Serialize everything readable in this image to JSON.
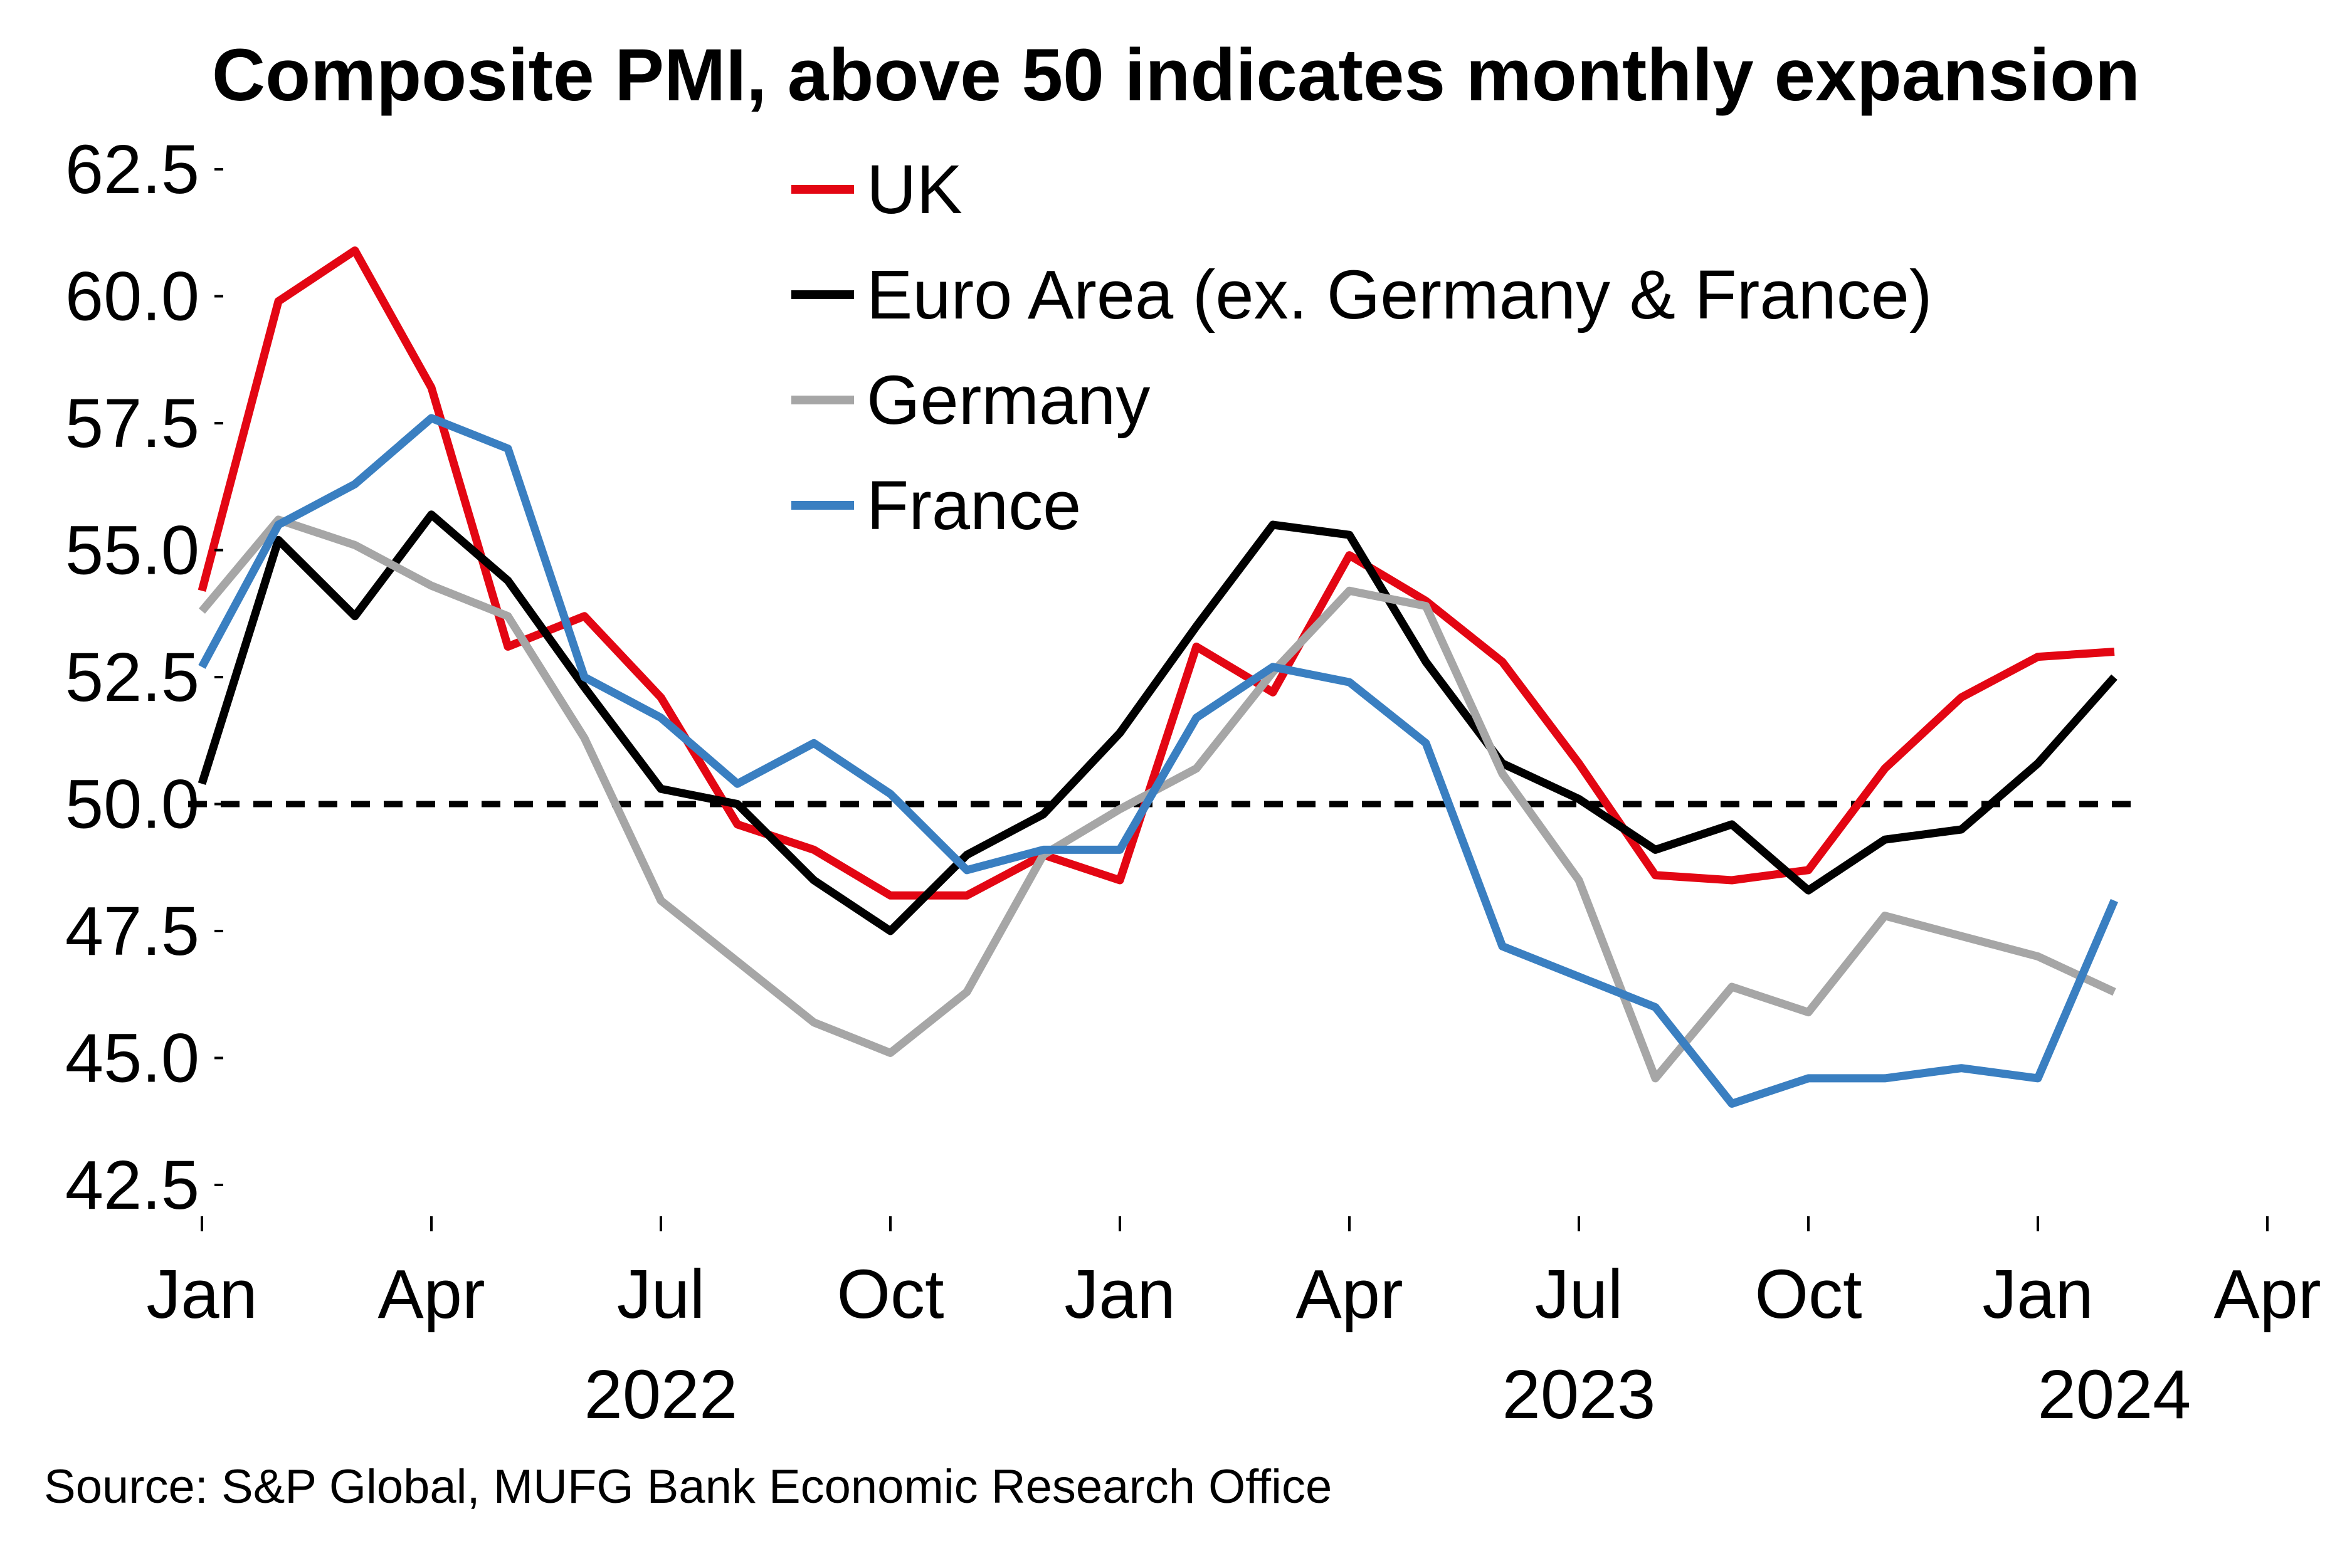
{
  "chart_data": {
    "type": "line",
    "title": "Composite PMI, above 50 indicates monthly expansion",
    "source": "Source: S&P Global, MUFG Bank Economic Research Office",
    "x": [
      "2022-01",
      "2022-02",
      "2022-03",
      "2022-04",
      "2022-05",
      "2022-06",
      "2022-07",
      "2022-08",
      "2022-09",
      "2022-10",
      "2022-11",
      "2022-12",
      "2023-01",
      "2023-02",
      "2023-03",
      "2023-04",
      "2023-05",
      "2023-06",
      "2023-07",
      "2023-08",
      "2023-09",
      "2023-10",
      "2023-11",
      "2023-12",
      "2024-01",
      "2024-02"
    ],
    "x_ticks": [
      {
        "date": "2022-01",
        "label": "Jan"
      },
      {
        "date": "2022-04",
        "label": "Apr"
      },
      {
        "date": "2022-07",
        "label": "Jul"
      },
      {
        "date": "2022-10",
        "label": "Oct"
      },
      {
        "date": "2023-01",
        "label": "Jan"
      },
      {
        "date": "2023-04",
        "label": "Apr"
      },
      {
        "date": "2023-07",
        "label": "Jul"
      },
      {
        "date": "2023-10",
        "label": "Oct"
      },
      {
        "date": "2024-01",
        "label": "Jan"
      },
      {
        "date": "2024-04",
        "label": "Apr"
      }
    ],
    "year_labels": [
      {
        "date": "2022-07",
        "label": "2022"
      },
      {
        "date": "2023-07",
        "label": "2023"
      },
      {
        "date": "2024-02",
        "label": "2024"
      }
    ],
    "xlim": [
      "2022-01",
      "2024-04"
    ],
    "ylim": [
      42.5,
      62.5
    ],
    "y_ticks": [
      "62.5",
      "60.0",
      "57.5",
      "55.0",
      "52.5",
      "50.0",
      "47.5",
      "45.0",
      "42.5"
    ],
    "reference_line": {
      "y": 50,
      "style": "dashed",
      "color": "#000000"
    },
    "grid": false,
    "legend_position": "top-center",
    "series": [
      {
        "name": "UK",
        "color": "#e30613",
        "values": [
          54.2,
          59.9,
          60.9,
          58.2,
          53.1,
          53.7,
          52.1,
          49.6,
          49.1,
          48.2,
          48.2,
          49.0,
          48.5,
          53.1,
          52.2,
          54.9,
          54.0,
          52.8,
          50.8,
          48.6,
          48.5,
          48.7,
          50.7,
          52.1,
          52.9,
          53.0
        ]
      },
      {
        "name": "Euro Area (ex. Germany & France)",
        "color": "#000000",
        "values": [
          50.4,
          55.2,
          53.7,
          55.7,
          54.4,
          52.3,
          50.3,
          50.0,
          48.5,
          47.5,
          49.0,
          49.8,
          51.4,
          53.5,
          55.5,
          55.3,
          52.8,
          50.8,
          50.1,
          49.1,
          49.6,
          48.3,
          49.3,
          49.5,
          50.8,
          52.5
        ]
      },
      {
        "name": "Germany",
        "color": "#a6a6a6",
        "values": [
          53.8,
          55.6,
          55.1,
          54.3,
          53.7,
          51.3,
          48.1,
          46.9,
          45.7,
          45.1,
          46.3,
          49.0,
          49.9,
          50.7,
          52.6,
          54.2,
          53.9,
          50.6,
          48.5,
          44.6,
          46.4,
          45.9,
          47.8,
          47.4,
          47.0,
          46.3
        ]
      },
      {
        "name": "France",
        "color": "#3a7fc1",
        "values": [
          52.7,
          55.5,
          56.3,
          57.6,
          57.0,
          52.5,
          51.7,
          50.4,
          51.2,
          50.2,
          48.7,
          49.1,
          49.1,
          51.7,
          52.7,
          52.4,
          51.2,
          47.2,
          46.6,
          46.0,
          44.1,
          44.6,
          44.6,
          44.8,
          44.6,
          48.1
        ]
      }
    ]
  }
}
